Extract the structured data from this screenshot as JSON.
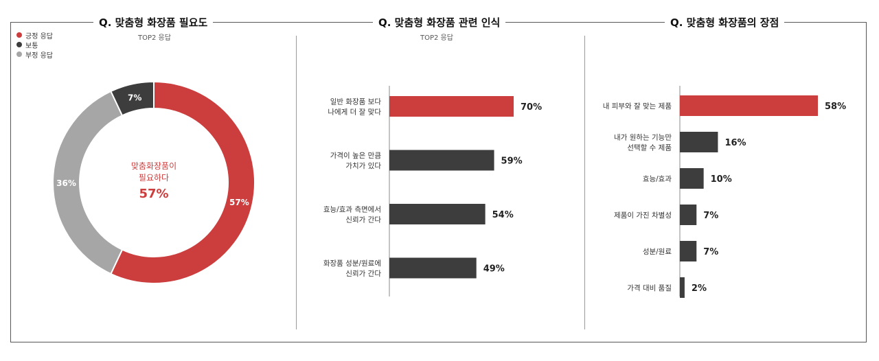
{
  "colors": {
    "accent": "#cc3d3d",
    "dark": "#3d3d3d",
    "gray": "#a6a6a6"
  },
  "panels": {
    "need": {
      "title": "Q. 맞춤형 화장품 필요도",
      "subtitle": "TOP2 응답"
    },
    "perception": {
      "title": "Q. 맞춤형 화장품 관련 인식",
      "subtitle": "TOP2 응답"
    },
    "advantage": {
      "title": "Q. 맞춤형 화장품의 장점"
    }
  },
  "legend": [
    {
      "label": "긍정 응답",
      "color": "#cc3d3d"
    },
    {
      "label": "보통",
      "color": "#3d3d3d"
    },
    {
      "label": "부정 응답",
      "color": "#a6a6a6"
    }
  ],
  "donut_center": {
    "line1": "맞춤화장품이",
    "line2": "필요하다",
    "value": "57%"
  },
  "chart_data": [
    {
      "type": "pie",
      "title": "Q. 맞춤형 화장품 필요도",
      "subtitle": "TOP2 응답",
      "donut": true,
      "slices": [
        {
          "label": "긍정 응답",
          "value": 57,
          "display": "57%",
          "color": "#cc3d3d"
        },
        {
          "label": "부정 응답",
          "value": 36,
          "display": "36%",
          "color": "#a6a6a6"
        },
        {
          "label": "보통",
          "value": 7,
          "display": "7%",
          "color": "#3d3d3d"
        }
      ]
    },
    {
      "type": "bar",
      "orientation": "horizontal",
      "title": "Q. 맞춤형 화장품 관련 인식",
      "subtitle": "TOP2 응답",
      "categories": [
        [
          "일반 화장품 보다",
          "나에게 더 잘 맞다"
        ],
        [
          "가격이 높은 만큼",
          "가치가 있다"
        ],
        [
          "효능/효과 측면에서",
          "신뢰가 간다"
        ],
        [
          "화장품 성분/원료에",
          "신뢰가 간다"
        ]
      ],
      "values": [
        70,
        59,
        54,
        49
      ],
      "labels": [
        "70%",
        "59%",
        "54%",
        "49%"
      ],
      "highlight_index": 0
    },
    {
      "type": "bar",
      "orientation": "horizontal",
      "title": "Q. 맞춤형 화장품의 장점",
      "categories": [
        [
          "내 피부와  잘 맞는 제품"
        ],
        [
          "내가 원하는 기능만",
          "선택할 수 제품"
        ],
        [
          "효능/효과"
        ],
        [
          "제품이 가진 차별성"
        ],
        [
          "성분/원료"
        ],
        [
          "가격  대비 품질"
        ]
      ],
      "values": [
        58,
        16,
        10,
        7,
        7,
        2
      ],
      "labels": [
        "58%",
        "16%",
        "10%",
        "7%",
        "7%",
        "2%"
      ],
      "highlight_index": 0
    }
  ]
}
